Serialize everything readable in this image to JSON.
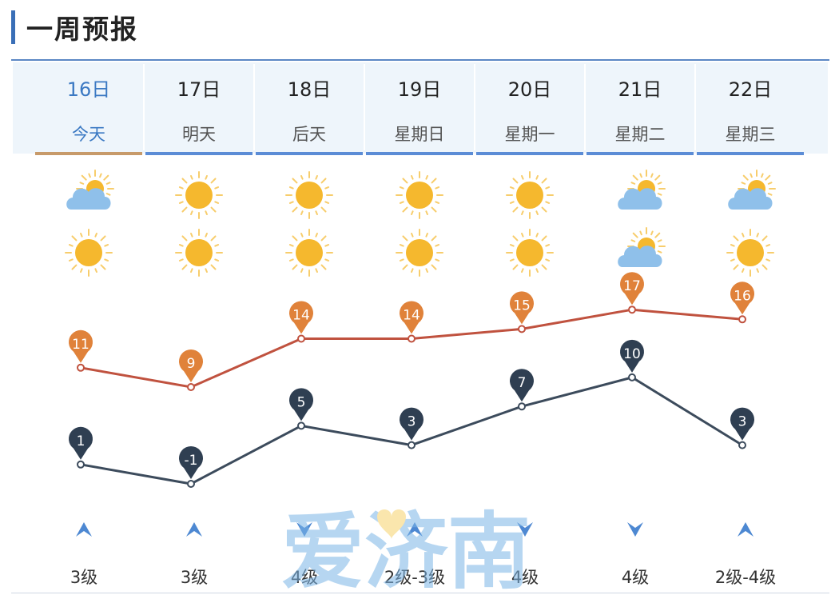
{
  "header": {
    "title": "一周预报"
  },
  "days": [
    {
      "date": "16日",
      "weekday": "今天",
      "icon_day": "partly-cloudy-icon",
      "icon_night": "sunny-icon",
      "high": 11,
      "low": 1,
      "wind_dir": "south",
      "wind_level": "3级",
      "today": true
    },
    {
      "date": "17日",
      "weekday": "明天",
      "icon_day": "sunny-icon",
      "icon_night": "sunny-icon",
      "high": 9,
      "low": -1,
      "wind_dir": "south",
      "wind_level": "3级"
    },
    {
      "date": "18日",
      "weekday": "后天",
      "icon_day": "sunny-icon",
      "icon_night": "sunny-icon",
      "high": 14,
      "low": 5,
      "wind_dir": "north",
      "wind_level": "4级"
    },
    {
      "date": "19日",
      "weekday": "星期日",
      "icon_day": "sunny-icon",
      "icon_night": "sunny-icon",
      "high": 14,
      "low": 3,
      "wind_dir": "south",
      "wind_level": "2级-3级"
    },
    {
      "date": "20日",
      "weekday": "星期一",
      "icon_day": "sunny-icon",
      "icon_night": "sunny-icon",
      "high": 15,
      "low": 7,
      "wind_dir": "north",
      "wind_level": "4级"
    },
    {
      "date": "21日",
      "weekday": "星期二",
      "icon_day": "partly-cloudy-icon",
      "icon_night": "partly-cloudy-icon",
      "high": 17,
      "low": 10,
      "wind_dir": "north",
      "wind_level": "4级"
    },
    {
      "date": "22日",
      "weekday": "星期三",
      "icon_day": "partly-cloudy-icon",
      "icon_night": "sunny-icon",
      "high": 16,
      "low": 3,
      "wind_dir": "south",
      "wind_level": "2级-4级"
    }
  ],
  "chart_data": {
    "type": "line",
    "categories": [
      "16日",
      "17日",
      "18日",
      "19日",
      "20日",
      "21日",
      "22日"
    ],
    "series": [
      {
        "values": [
          11,
          9,
          14,
          14,
          15,
          17,
          16
        ],
        "color": "#e0823a",
        "line_color": "#c0523f"
      },
      {
        "values": [
          1,
          -1,
          5,
          3,
          7,
          10,
          3
        ],
        "color": "#2f3f52",
        "line_color": "#3c4b5c"
      }
    ]
  },
  "watermark": {
    "text": "爱济南"
  },
  "colors": {
    "accent": "#3a6fb7",
    "today": "#3b79c3",
    "sun": "#f5b82e",
    "cloud": "#8fc0ea",
    "high": "#e0823a",
    "low": "#2f3f52"
  }
}
